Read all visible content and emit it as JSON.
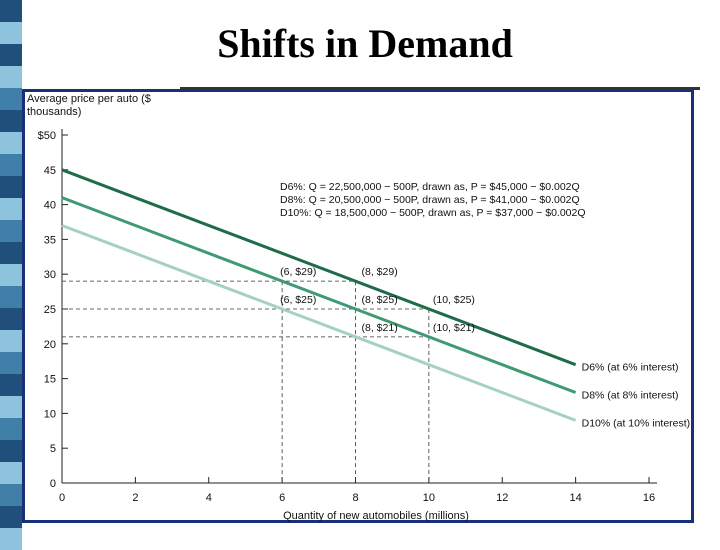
{
  "slide": {
    "title": "Shifts in Demand",
    "colors": {
      "bullet_dark": "#1f4f7a",
      "bullet_mid": "#3f7fa8",
      "bullet_light": "#8ec3de",
      "frame": "#1a2f7a"
    }
  },
  "chart_data": {
    "type": "line",
    "title": "",
    "ylabel": "Average price per auto ($ thousands)",
    "xlabel": "Quantity of new automobiles (millions)",
    "xlim": [
      0,
      16
    ],
    "ylim": [
      0,
      50
    ],
    "x_ticks": [
      "0",
      "2",
      "4",
      "6",
      "8",
      "10",
      "12",
      "14",
      "16"
    ],
    "y_ticks": [
      "0",
      "5",
      "10",
      "15",
      "20",
      "25",
      "30",
      "35",
      "40",
      "45",
      "$50"
    ],
    "grid": false,
    "legend_placement": "top-right",
    "equations": [
      {
        "label": "D6%:",
        "text": "Q = 22,500,000 − 500P, drawn as, P = $45,000 − $0.002Q"
      },
      {
        "label": "D8%:",
        "text": "Q = 20,500,000 − 500P, drawn as, P = $41,000 − $0.002Q"
      },
      {
        "label": "D10%:",
        "text": "Q = 18,500,000 − 500P, drawn as, P = $37,000 − $0.002Q"
      }
    ],
    "series": [
      {
        "name": "D6% (at 6% interest)",
        "x": [
          0,
          14
        ],
        "y": [
          45,
          17
        ],
        "color": "#1f6b4a"
      },
      {
        "name": "D8% (at 8% interest)",
        "x": [
          0,
          14
        ],
        "y": [
          41,
          13
        ],
        "color": "#3f9a73"
      },
      {
        "name": "D10% (at 10% interest)",
        "x": [
          0,
          14
        ],
        "y": [
          37,
          9
        ],
        "color": "#a6d1bd"
      }
    ],
    "points": [
      {
        "x": 6,
        "y": 29,
        "label": "(6, $29)"
      },
      {
        "x": 8,
        "y": 29,
        "label": "(8, $29)"
      },
      {
        "x": 6,
        "y": 25,
        "label": "(6, $25)"
      },
      {
        "x": 8,
        "y": 25,
        "label": "(8, $25)"
      },
      {
        "x": 10,
        "y": 25,
        "label": "(10, $25)"
      },
      {
        "x": 8,
        "y": 21,
        "label": "(8, $21)"
      },
      {
        "x": 10,
        "y": 21,
        "label": "(10, $21)"
      }
    ]
  }
}
